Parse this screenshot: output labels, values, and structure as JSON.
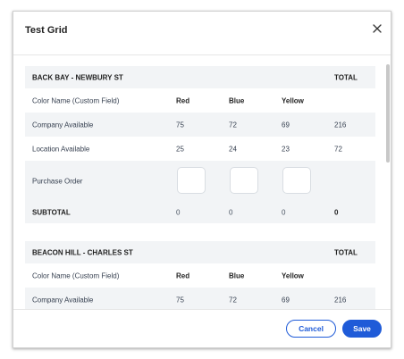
{
  "modal": {
    "title": "Test Grid",
    "cancel_label": "Cancel",
    "save_label": "Save"
  },
  "colors": {
    "accent": "#1f5bd8",
    "row_shade": "#f2f4f6",
    "input_border": "#d9dde2"
  },
  "sections": [
    {
      "location": "BACK BAY - NEWBURY ST",
      "total_header": "TOTAL",
      "color_row": {
        "label": "Color Name (Custom Field)",
        "colors": [
          "Red",
          "Blue",
          "Yellow"
        ]
      },
      "company": {
        "label": "Company Available",
        "values": [
          "75",
          "72",
          "69"
        ],
        "total": "216"
      },
      "location_avail": {
        "label": "Location Available",
        "values": [
          "25",
          "24",
          "23"
        ],
        "total": "72"
      },
      "purchase": {
        "label": "Purchase Order"
      },
      "subtotal": {
        "label": "SUBTOTAL",
        "values": [
          "0",
          "0",
          "0"
        ],
        "total": "0"
      }
    },
    {
      "location": "BEACON HILL - CHARLES ST",
      "total_header": "TOTAL",
      "color_row": {
        "label": "Color Name (Custom Field)",
        "colors": [
          "Red",
          "Blue",
          "Yellow"
        ]
      },
      "company": {
        "label": "Company Available",
        "values": [
          "75",
          "72",
          "69"
        ],
        "total": "216"
      }
    }
  ]
}
